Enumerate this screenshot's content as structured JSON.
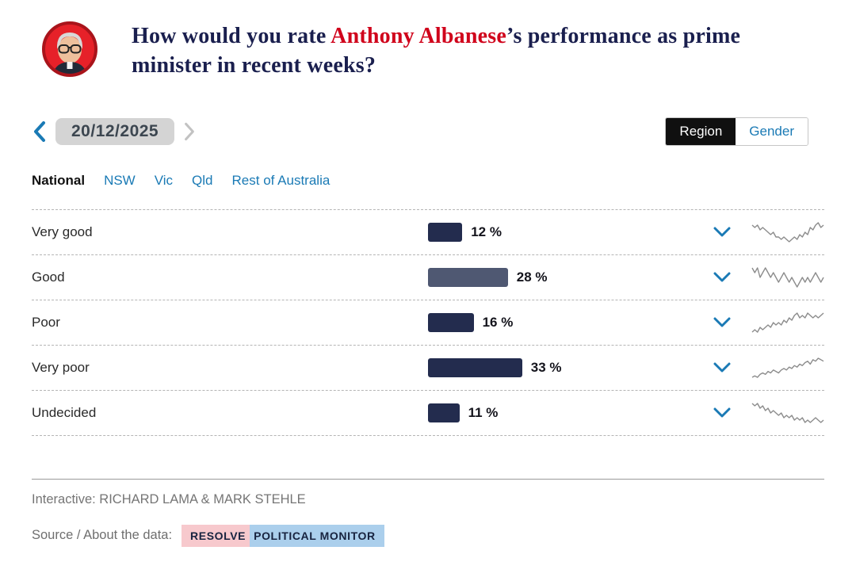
{
  "header": {
    "title_prefix": "How would you rate ",
    "title_highlight": "Anthony Albanese",
    "title_suffix": "’s performance as prime minister in recent weeks?",
    "avatar_alt": "Anthony Albanese portrait"
  },
  "date_nav": {
    "date": "20/12/2025"
  },
  "toggle": {
    "options": [
      {
        "label": "Region",
        "selected": true
      },
      {
        "label": "Gender",
        "selected": false
      }
    ]
  },
  "tabs": [
    {
      "label": "National",
      "selected": true
    },
    {
      "label": "NSW",
      "selected": false
    },
    {
      "label": "Vic",
      "selected": false
    },
    {
      "label": "Qld",
      "selected": false
    },
    {
      "label": "Rest of Australia",
      "selected": false
    }
  ],
  "chart_data": {
    "type": "bar",
    "orientation": "horizontal",
    "title": "How would you rate Anthony Albanese’s performance as prime minister in recent weeks?",
    "categories": [
      "Very good",
      "Good",
      "Poor",
      "Very poor",
      "Undecided"
    ],
    "values": [
      12,
      28,
      16,
      33,
      11
    ],
    "value_labels": [
      "12 %",
      "28 %",
      "16 %",
      "33 %",
      "11 %"
    ],
    "unit": "%",
    "xlim": [
      0,
      40
    ],
    "bar_colors": [
      "#232c4e",
      "#4f5872",
      "#232c4e",
      "#232c4e",
      "#232c4e"
    ],
    "spark_color": "#8c8c8c",
    "accent_blue": "#1a7ab5",
    "accent_red": "#d0021b",
    "sparklines": [
      [
        13,
        12,
        13,
        11,
        12,
        11,
        10,
        9,
        10,
        8,
        8,
        7,
        8,
        7,
        6,
        7,
        8,
        7,
        9,
        8,
        10,
        9,
        12,
        11,
        13,
        14,
        12,
        13
      ],
      [
        15,
        14,
        15,
        13,
        14,
        15,
        14,
        13,
        14,
        13,
        12,
        13,
        14,
        13,
        12,
        13,
        12,
        11,
        12,
        13,
        12,
        13,
        12,
        13,
        14,
        13,
        12,
        13
      ],
      [
        9,
        10,
        9,
        11,
        10,
        11,
        12,
        11,
        13,
        12,
        13,
        12,
        14,
        13,
        15,
        14,
        16,
        17,
        15,
        16,
        15,
        17,
        16,
        15,
        16,
        15,
        16,
        17
      ],
      [
        20,
        21,
        20,
        22,
        23,
        22,
        24,
        23,
        25,
        24,
        23,
        25,
        26,
        25,
        27,
        26,
        28,
        27,
        29,
        28,
        30,
        31,
        29,
        32,
        31,
        33,
        32,
        31
      ],
      [
        16,
        15,
        16,
        14,
        15,
        13,
        14,
        12,
        13,
        12,
        11,
        12,
        10,
        11,
        10,
        11,
        9,
        10,
        9,
        10,
        8,
        9,
        8,
        9,
        10,
        9,
        8,
        9
      ]
    ]
  },
  "footer": {
    "credit": "Interactive: RICHARD LAMA & MARK STEHLE",
    "source_label": "Source / About the data:",
    "source_badge_left": "RESOLVE",
    "source_badge_right": "POLITICAL MONITOR"
  }
}
